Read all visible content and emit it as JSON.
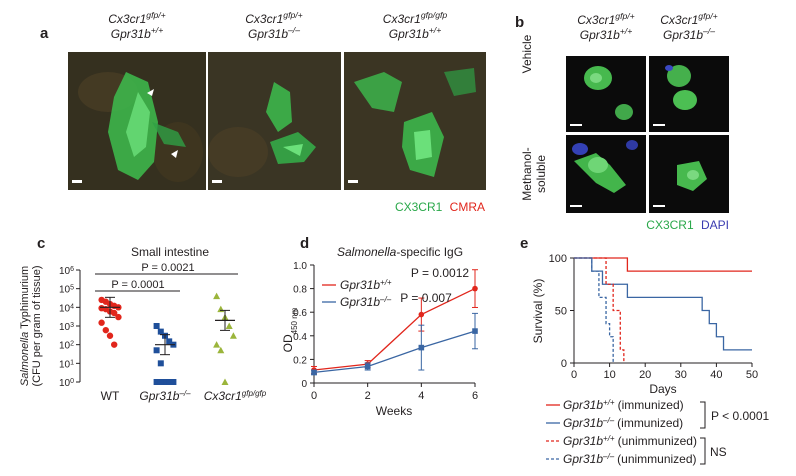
{
  "panel_a": {
    "label": "a",
    "columns": [
      {
        "line1": "Cx3cr1gfp/+",
        "line2": "Gpr31b+/+"
      },
      {
        "line1": "Cx3cr1gfp/+",
        "line2": "Gpr31b–/–"
      },
      {
        "line1": "Cx3cr1gfp/gfp",
        "line2": "Gpr31b+/+"
      }
    ],
    "legend_green": "CX3CR1",
    "legend_red": "CMRA"
  },
  "panel_b": {
    "label": "b",
    "columns": [
      {
        "line1": "Cx3cr1gfp/+",
        "line2": "Gpr31b+/+"
      },
      {
        "line1": "Cx3cr1gfp/+",
        "line2": "Gpr31b–/–"
      }
    ],
    "rows": [
      "Vehicle",
      "Methanol-soluble"
    ],
    "legend_green": "CX3CR1",
    "legend_blue": "DAPI"
  },
  "chart_data": [
    {
      "panel": "c",
      "type": "scatter",
      "title": "Small intestine",
      "ylabel": "Salmonella Typhimurium (CFU per gram of tissue)",
      "ylog": true,
      "ylim": [
        1,
        1000000
      ],
      "yticks": [
        "10^0",
        "10^1",
        "10^2",
        "10^3",
        "10^4",
        "10^5",
        "10^6"
      ],
      "categories": [
        "WT",
        "Gpr31b–/–",
        "Cx3cr1gfp/gfp"
      ],
      "colors": [
        "#e1261c",
        "#1f4f9a",
        "#9bb53b"
      ],
      "series": [
        {
          "values": [
            25000,
            20000,
            15000,
            12000,
            10000,
            9000,
            8000,
            6000,
            5000,
            3000,
            1500,
            600,
            300,
            100
          ],
          "mean": 10000
        },
        {
          "values": [
            1000,
            500,
            300,
            150,
            100,
            50,
            10,
            1,
            1,
            1,
            1,
            1
          ],
          "mean": 100
        },
        {
          "values": [
            40000,
            8000,
            3000,
            1000,
            300,
            100,
            50,
            1
          ],
          "mean": 2000
        }
      ],
      "comparisons": [
        {
          "text": "P = 0.0021",
          "from": 0,
          "to": 2
        },
        {
          "text": "P = 0.0001",
          "from": 0,
          "to": 1
        }
      ]
    },
    {
      "panel": "d",
      "type": "line",
      "title": "Salmonella-specific IgG",
      "xlabel": "Weeks",
      "ylabel": "OD450 nm",
      "x": [
        0,
        2,
        4,
        6
      ],
      "xlim": [
        0,
        6
      ],
      "ylim": [
        0,
        1.0
      ],
      "xticks": [
        "0",
        "2",
        "4",
        "6"
      ],
      "yticks": [
        "0",
        "0.2",
        "0.4",
        "0.6",
        "0.8",
        "1.0"
      ],
      "series": [
        {
          "name": "Gpr31b+/+",
          "color": "#e1261c",
          "values": [
            0.11,
            0.16,
            0.58,
            0.8
          ],
          "err": [
            0.03,
            0.03,
            0.14,
            0.16
          ]
        },
        {
          "name": "Gpr31b–/–",
          "color": "#3a66a3",
          "values": [
            0.09,
            0.14,
            0.3,
            0.44
          ],
          "err": [
            0.02,
            0.03,
            0.19,
            0.15
          ]
        }
      ],
      "annotations": [
        "P = 0.0012",
        "P = 0.007"
      ]
    },
    {
      "panel": "e",
      "type": "line",
      "xlabel": "Days",
      "ylabel": "Survival (%)",
      "xlim": [
        0,
        50
      ],
      "ylim": [
        0,
        100
      ],
      "xticks": [
        "0",
        "10",
        "20",
        "30",
        "40",
        "50"
      ],
      "yticks": [
        "0",
        "50",
        "100"
      ],
      "series": [
        {
          "name": "Gpr31b+/+ (immunized)",
          "color": "#e1261c",
          "dashed": false,
          "x": [
            0,
            15,
            15,
            50
          ],
          "y": [
            100,
            100,
            87.5,
            87.5
          ]
        },
        {
          "name": "Gpr31b–/– (immunized)",
          "color": "#3a66a3",
          "dashed": false,
          "x": [
            0,
            5,
            5,
            8,
            8,
            15,
            15,
            36,
            36,
            38,
            38,
            40,
            40,
            42,
            42,
            50
          ],
          "y": [
            100,
            100,
            87.5,
            87.5,
            75,
            75,
            62.5,
            62.5,
            50,
            50,
            37.5,
            37.5,
            25,
            25,
            12.5,
            12.5
          ]
        },
        {
          "name": "Gpr31b+/+ (unimmunized)",
          "color": "#e1261c",
          "dashed": true,
          "x": [
            0,
            9,
            9,
            11,
            11,
            13,
            13,
            14,
            14
          ],
          "y": [
            100,
            100,
            75,
            75,
            50,
            50,
            12.5,
            12.5,
            0
          ]
        },
        {
          "name": "Gpr31b–/– (unimmunized)",
          "color": "#3a66a3",
          "dashed": true,
          "x": [
            0,
            5,
            5,
            7,
            7,
            9,
            9,
            10,
            10,
            11,
            11
          ],
          "y": [
            100,
            100,
            87.5,
            87.5,
            62.5,
            62.5,
            37.5,
            37.5,
            25,
            25,
            0
          ]
        }
      ],
      "legend_groups": [
        {
          "text": "P < 0.0001"
        },
        {
          "text": "NS"
        }
      ]
    }
  ]
}
